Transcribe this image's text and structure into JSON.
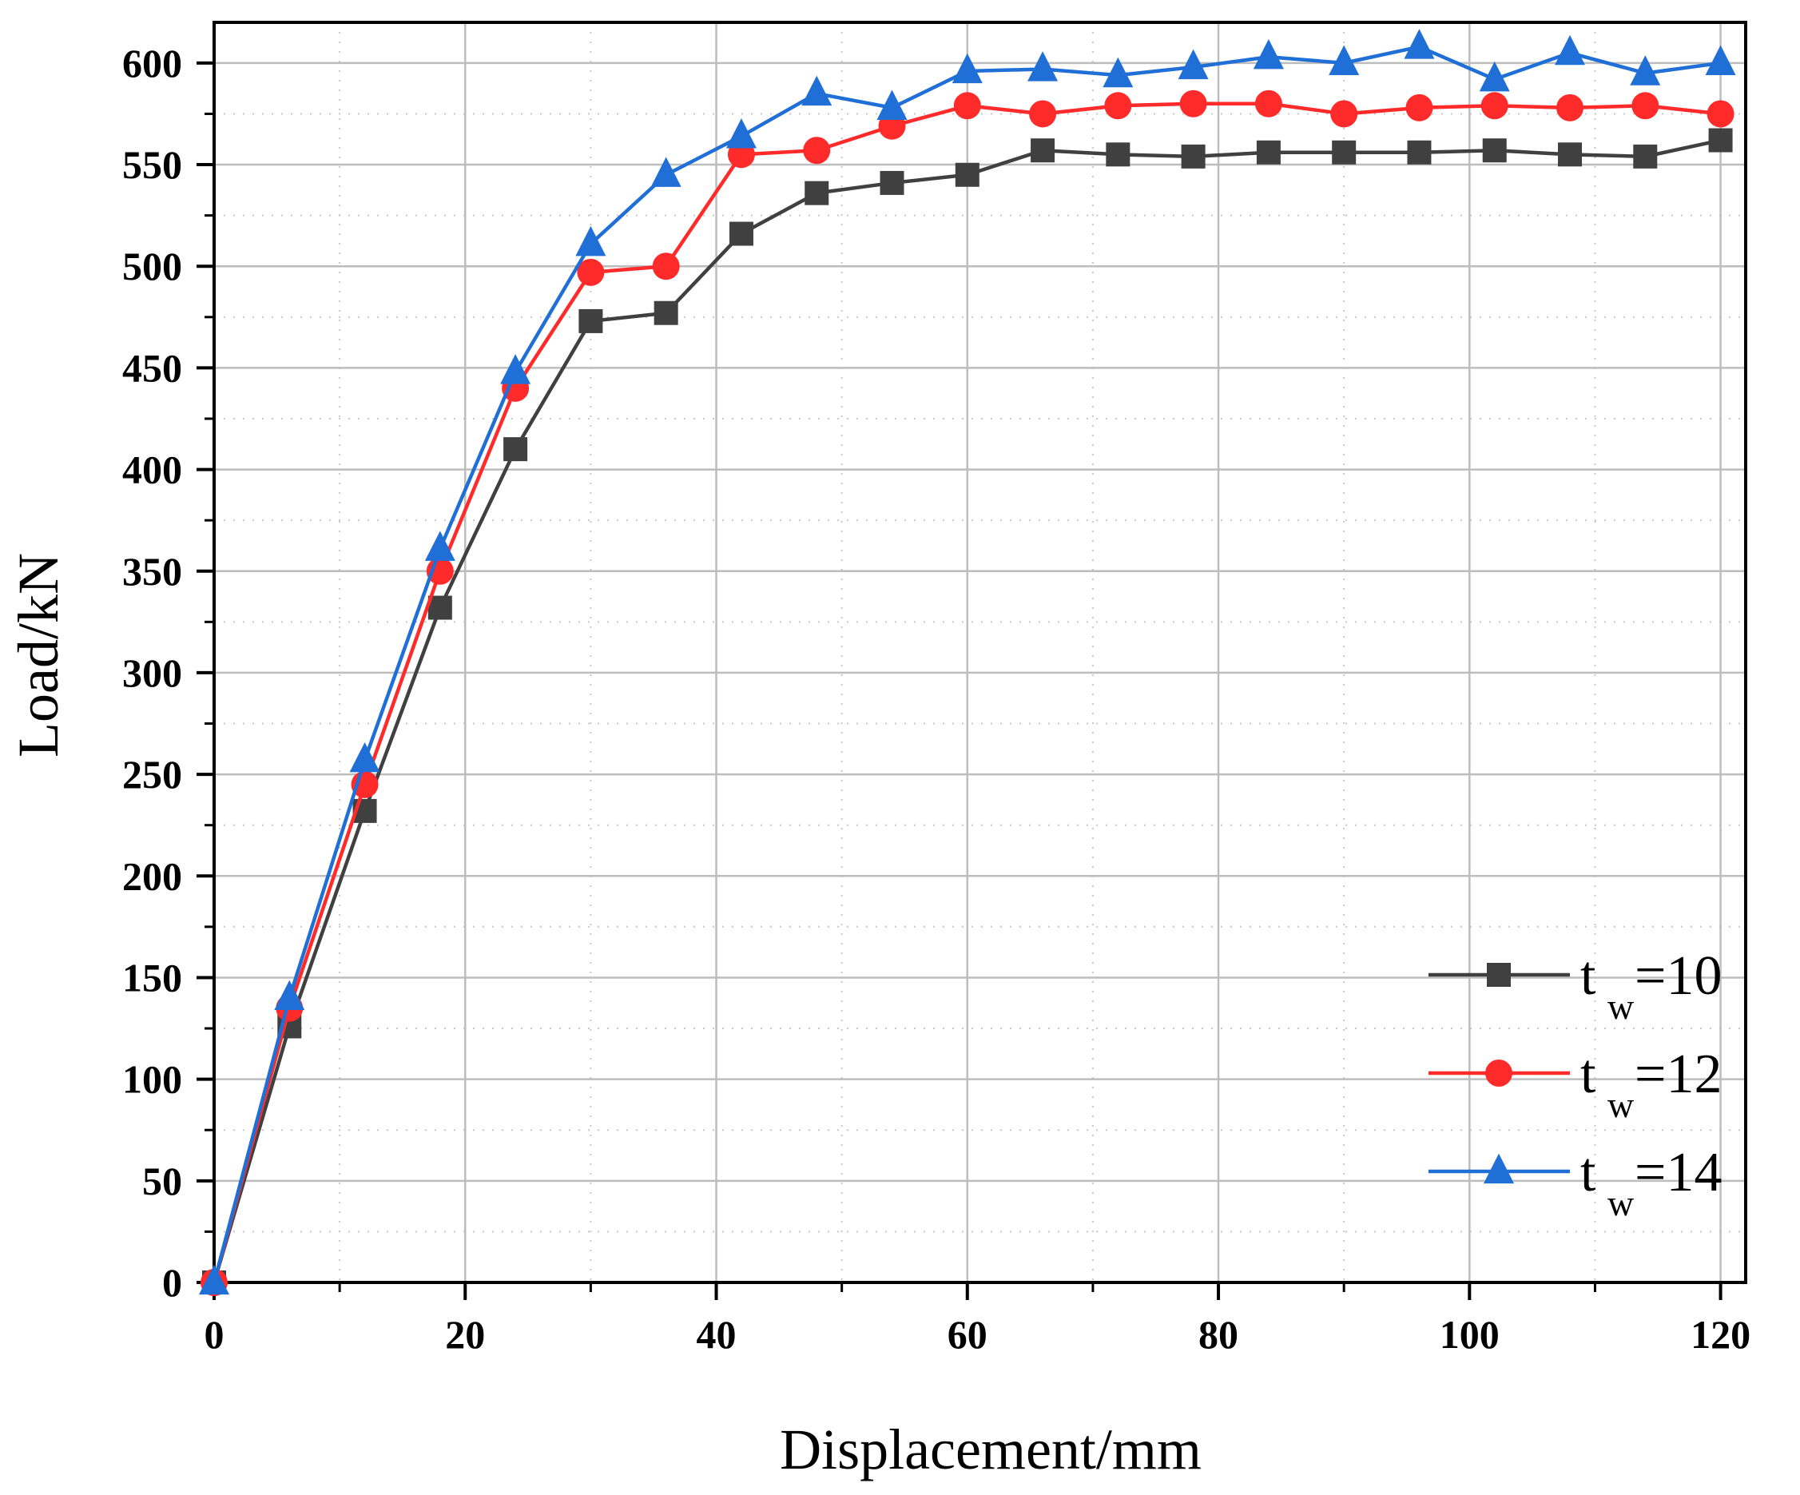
{
  "chart_data": {
    "type": "line",
    "title": "",
    "xlabel": "Displacement/mm",
    "ylabel": "Load/kN",
    "xlim": [
      0,
      122
    ],
    "ylim": [
      0,
      620
    ],
    "xticks": [
      "0",
      "20",
      "40",
      "60",
      "80",
      "100",
      "120"
    ],
    "yticks": [
      "0",
      "50",
      "100",
      "150",
      "200",
      "250",
      "300",
      "350",
      "400",
      "450",
      "500",
      "550",
      "600"
    ],
    "grid": true,
    "legend_position": "bottom-right",
    "x": [
      0,
      6,
      12,
      18,
      24,
      30,
      36,
      42,
      48,
      54,
      60,
      66,
      72,
      78,
      84,
      90,
      96,
      102,
      108,
      114,
      120
    ],
    "series": [
      {
        "name": "tw=10",
        "label_main": "t",
        "label_sub": "w",
        "label_value": "=10",
        "color": "#404040",
        "marker": "square",
        "values": [
          0,
          126,
          232,
          332,
          410,
          473,
          477,
          516,
          536,
          541,
          545,
          557,
          555,
          554,
          556,
          556,
          556,
          557,
          555,
          554,
          562
        ]
      },
      {
        "name": "tw=12",
        "label_main": "t",
        "label_sub": "w",
        "label_value": "=12",
        "color": "#ff2a2a",
        "marker": "circle",
        "values": [
          0,
          135,
          245,
          350,
          440,
          497,
          500,
          555,
          557,
          569,
          579,
          575,
          579,
          580,
          580,
          575,
          578,
          579,
          578,
          579,
          575
        ]
      },
      {
        "name": "tw=14",
        "label_main": "t",
        "label_sub": "w",
        "label_value": "=14",
        "color": "#1f6fd6",
        "marker": "triangle",
        "values": [
          0,
          140,
          257,
          361,
          448,
          511,
          545,
          564,
          585,
          578,
          596,
          597,
          594,
          598,
          603,
          600,
          608,
          592,
          605,
          595,
          600
        ]
      }
    ]
  }
}
